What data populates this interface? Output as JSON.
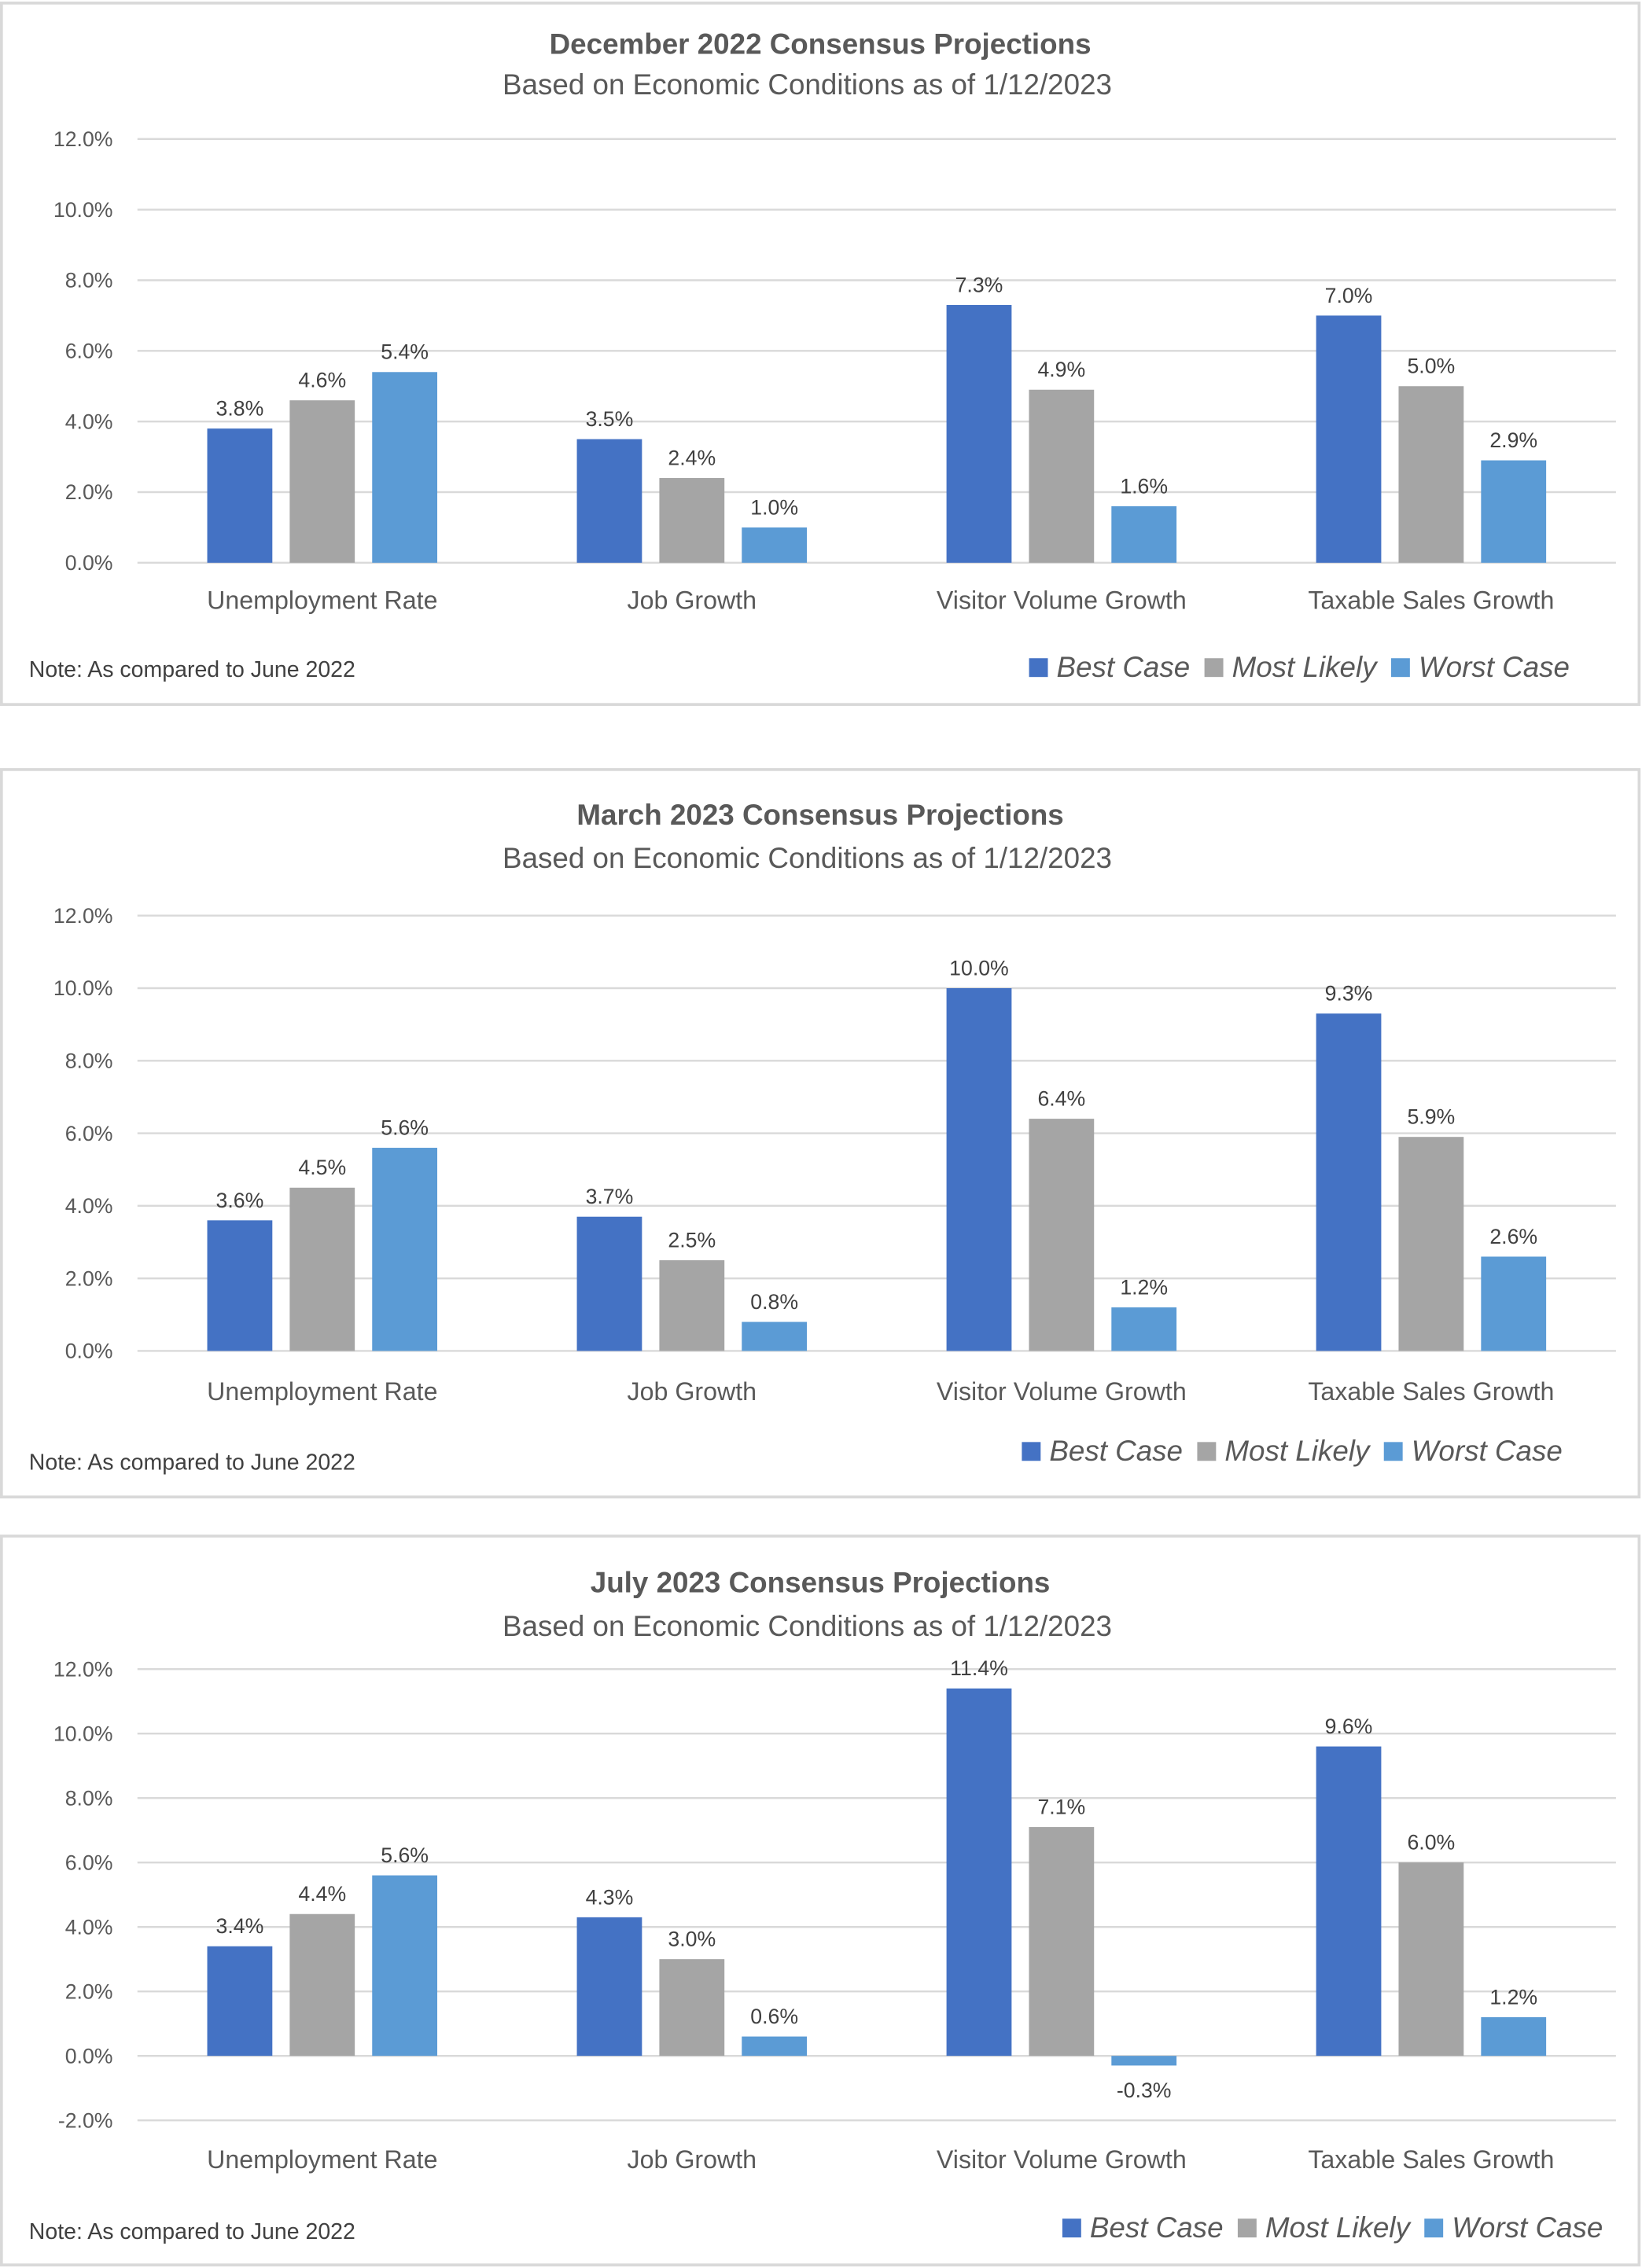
{
  "chart_data": [
    {
      "type": "bar",
      "title": "December 2022 Consensus Projections",
      "subtitle": "Based on Economic Conditions as of 1/12/2023",
      "categories": [
        "Unemployment Rate",
        "Job Growth",
        "Visitor Volume Growth",
        "Taxable Sales Growth"
      ],
      "series": [
        {
          "name": "Best Case",
          "values": [
            3.8,
            3.5,
            7.3,
            7.0
          ],
          "labels": [
            "3.8%",
            "3.5%",
            "7.3%",
            "7.0%"
          ]
        },
        {
          "name": "Most Likely",
          "values": [
            4.6,
            2.4,
            4.9,
            5.0
          ],
          "labels": [
            "4.6%",
            "2.4%",
            "4.9%",
            "5.0%"
          ]
        },
        {
          "name": "Worst Case",
          "values": [
            5.4,
            1.0,
            1.6,
            2.9
          ],
          "labels": [
            "5.4%",
            "1.0%",
            "1.6%",
            "2.9%"
          ]
        }
      ],
      "ylim": [
        0,
        12
      ],
      "yticks": [
        "0.0%",
        "2.0%",
        "4.0%",
        "6.0%",
        "8.0%",
        "10.0%",
        "12.0%"
      ],
      "grid": true,
      "legend_position": "bottom-right",
      "note": "Note: As compared to June 2022"
    },
    {
      "type": "bar",
      "title": "March 2023 Consensus Projections",
      "subtitle": "Based on Economic Conditions as of 1/12/2023",
      "categories": [
        "Unemployment Rate",
        "Job Growth",
        "Visitor Volume Growth",
        "Taxable Sales Growth"
      ],
      "series": [
        {
          "name": "Best Case",
          "values": [
            3.6,
            3.7,
            10.0,
            9.3
          ],
          "labels": [
            "3.6%",
            "3.7%",
            "10.0%",
            "9.3%"
          ]
        },
        {
          "name": "Most Likely",
          "values": [
            4.5,
            2.5,
            6.4,
            5.9
          ],
          "labels": [
            "4.5%",
            "2.5%",
            "6.4%",
            "5.9%"
          ]
        },
        {
          "name": "Worst Case",
          "values": [
            5.6,
            0.8,
            1.2,
            2.6
          ],
          "labels": [
            "5.6%",
            "0.8%",
            "1.2%",
            "2.6%"
          ]
        }
      ],
      "ylim": [
        0,
        12
      ],
      "yticks": [
        "0.0%",
        "2.0%",
        "4.0%",
        "6.0%",
        "8.0%",
        "10.0%",
        "12.0%"
      ],
      "grid": true,
      "legend_position": "bottom-right",
      "note": "Note: As compared to June 2022"
    },
    {
      "type": "bar",
      "title": "July 2023 Consensus Projections",
      "subtitle": "Based on Economic Conditions as of 1/12/2023",
      "categories": [
        "Unemployment Rate",
        "Job Growth",
        "Visitor Volume Growth",
        "Taxable Sales Growth"
      ],
      "series": [
        {
          "name": "Best Case",
          "values": [
            3.4,
            4.3,
            11.4,
            9.6
          ],
          "labels": [
            "3.4%",
            "4.3%",
            "11.4%",
            "9.6%"
          ]
        },
        {
          "name": "Most Likely",
          "values": [
            4.4,
            3.0,
            7.1,
            6.0
          ],
          "labels": [
            "4.4%",
            "3.0%",
            "7.1%",
            "6.0%"
          ]
        },
        {
          "name": "Worst Case",
          "values": [
            5.6,
            0.6,
            -0.3,
            1.2
          ],
          "labels": [
            "5.6%",
            "0.6%",
            "-0.3%",
            "1.2%"
          ]
        }
      ],
      "ylim": [
        -2,
        12
      ],
      "yticks": [
        "-2.0%",
        "0.0%",
        "2.0%",
        "4.0%",
        "6.0%",
        "8.0%",
        "10.0%",
        "12.0%"
      ],
      "grid": true,
      "legend_position": "bottom-right",
      "note": "Note: As compared to June 2022"
    }
  ],
  "colors": {
    "Best Case": "#4472C4",
    "Most Likely": "#A5A5A5",
    "Worst Case": "#5B9BD5",
    "grid": "#D9D9D9",
    "border": "#D9D9D9"
  }
}
